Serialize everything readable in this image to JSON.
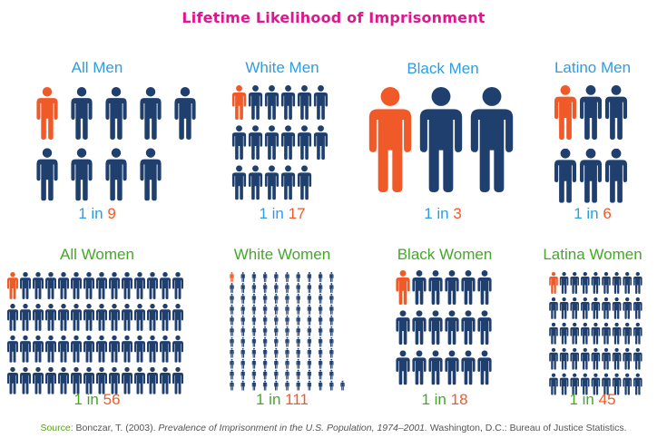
{
  "title": "Lifetime Likelihood of Imprisonment",
  "colors": {
    "title": "#e0168f",
    "highlight": "#f05a28",
    "figure": "#1f3f6e",
    "men_label": "#2e9de0",
    "women_label": "#44a829",
    "ratio_text": "#2e9de0",
    "ratio_number": "#f05a28"
  },
  "chart_data": {
    "type": "pictograph",
    "unit": "person",
    "panels": [
      {
        "label": "All Men",
        "group": "men",
        "one": "1",
        "in": "in",
        "n": "9",
        "total": 9,
        "highlighted": 1
      },
      {
        "label": "White Men",
        "group": "men",
        "one": "1",
        "in": "in",
        "n": "17",
        "total": 17,
        "highlighted": 1
      },
      {
        "label": "Black Men",
        "group": "men",
        "one": "1",
        "in": "in",
        "n": "3",
        "total": 3,
        "highlighted": 1
      },
      {
        "label": "Latino Men",
        "group": "men",
        "one": "1",
        "in": "in",
        "n": "6",
        "total": 6,
        "highlighted": 1
      },
      {
        "label": "All Women",
        "group": "women",
        "one": "1",
        "in": "in",
        "n": "56",
        "total": 56,
        "highlighted": 1
      },
      {
        "label": "White Women",
        "group": "women",
        "one": "1",
        "in": "in",
        "n": "111",
        "total": 111,
        "highlighted": 1
      },
      {
        "label": "Black Women",
        "group": "women",
        "one": "1",
        "in": "in",
        "n": "18",
        "total": 18,
        "highlighted": 1
      },
      {
        "label": "Latina Women",
        "group": "women",
        "one": "1",
        "in": "in",
        "n": "45",
        "total": 45,
        "highlighted": 1
      }
    ]
  },
  "source": {
    "label": "Source:",
    "author": " Bonczar, T. (2003). ",
    "publication": "Prevalence of Imprisonment in the U.S. Population, 1974–2001.",
    "rest": " Washington, D.C.: Bureau of Justice Statistics."
  }
}
